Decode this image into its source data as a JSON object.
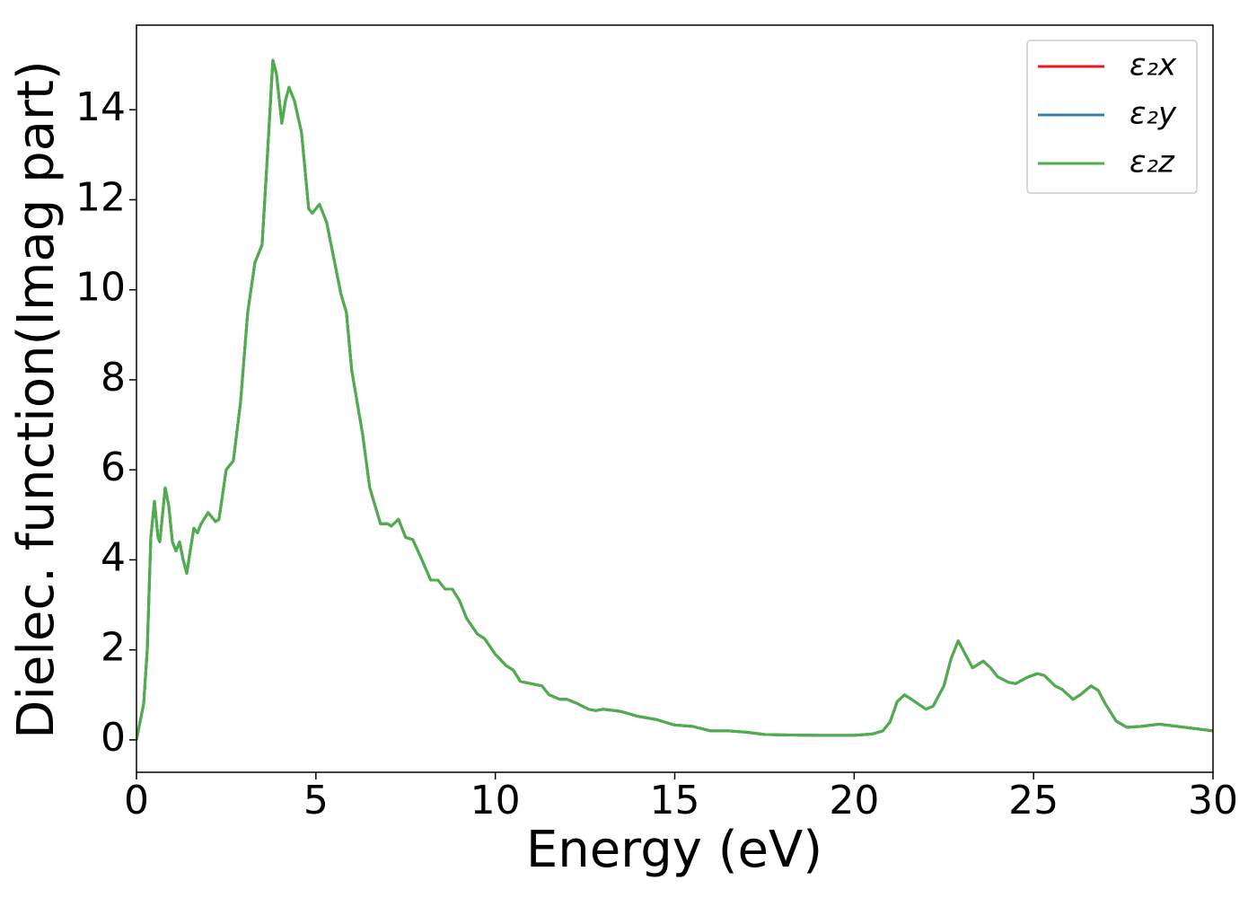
{
  "chart_data": {
    "type": "line",
    "x_label": "Energy (eV)",
    "y_label": "Dielec. function(Imag part)",
    "x": [
      0,
      0.2,
      0.3,
      0.4,
      0.5,
      0.6,
      0.65,
      0.8,
      0.9,
      1.0,
      1.1,
      1.2,
      1.3,
      1.4,
      1.5,
      1.6,
      1.7,
      1.8,
      2.0,
      2.2,
      2.3,
      2.5,
      2.7,
      2.9,
      3.1,
      3.3,
      3.5,
      3.65,
      3.8,
      3.9,
      4.05,
      4.15,
      4.25,
      4.4,
      4.6,
      4.8,
      4.9,
      5.1,
      5.3,
      5.5,
      5.7,
      5.85,
      6.0,
      6.3,
      6.5,
      6.8,
      7.0,
      7.1,
      7.3,
      7.5,
      7.7,
      7.9,
      8.2,
      8.4,
      8.6,
      8.8,
      9.0,
      9.2,
      9.5,
      9.7,
      10.0,
      10.3,
      10.5,
      10.7,
      11.0,
      11.3,
      11.5,
      11.8,
      12.0,
      12.3,
      12.6,
      12.8,
      13.0,
      13.5,
      14.0,
      14.5,
      15.0,
      15.5,
      16.0,
      16.5,
      17.0,
      17.5,
      18.0,
      19.0,
      20.0,
      20.5,
      20.8,
      21.0,
      21.2,
      21.4,
      21.6,
      22.0,
      22.2,
      22.5,
      22.7,
      22.9,
      23.1,
      23.3,
      23.6,
      23.8,
      24.0,
      24.3,
      24.5,
      24.8,
      25.1,
      25.3,
      25.6,
      25.8,
      26.1,
      26.3,
      26.6,
      26.8,
      27.0,
      27.3,
      27.6,
      28.0,
      28.5,
      29.0,
      29.5,
      30.0
    ],
    "series": [
      {
        "name": "ε₂x",
        "color": "#e41a1c",
        "values": [
          0,
          0.8,
          2,
          4.5,
          5.3,
          4.5,
          4.4,
          5.6,
          5.2,
          4.4,
          4.2,
          4.4,
          4.0,
          3.7,
          4.2,
          4.7,
          4.6,
          4.8,
          5.05,
          4.85,
          4.9,
          6.0,
          6.2,
          7.5,
          9.5,
          10.6,
          11.0,
          13,
          15.1,
          14.8,
          13.7,
          14.2,
          14.5,
          14.2,
          13.5,
          11.8,
          11.7,
          11.9,
          11.5,
          10.7,
          9.9,
          9.5,
          8.2,
          6.8,
          5.6,
          4.8,
          4.8,
          4.75,
          4.9,
          4.5,
          4.45,
          4.1,
          3.55,
          3.55,
          3.35,
          3.35,
          3.1,
          2.7,
          2.35,
          2.25,
          1.9,
          1.65,
          1.55,
          1.3,
          1.25,
          1.2,
          1.0,
          0.9,
          0.9,
          0.8,
          0.68,
          0.65,
          0.68,
          0.63,
          0.52,
          0.45,
          0.33,
          0.3,
          0.2,
          0.2,
          0.17,
          0.12,
          0.11,
          0.1,
          0.1,
          0.13,
          0.2,
          0.4,
          0.85,
          1.0,
          0.9,
          0.68,
          0.75,
          1.2,
          1.8,
          2.2,
          1.9,
          1.6,
          1.75,
          1.6,
          1.4,
          1.28,
          1.25,
          1.38,
          1.47,
          1.43,
          1.2,
          1.12,
          0.9,
          1.0,
          1.2,
          1.1,
          0.8,
          0.42,
          0.28,
          0.3,
          0.35,
          0.3,
          0.25,
          0.2
        ]
      },
      {
        "name": "ε₂y",
        "color": "#377eb8",
        "values": [
          0,
          0.8,
          2,
          4.5,
          5.3,
          4.5,
          4.4,
          5.6,
          5.2,
          4.4,
          4.2,
          4.4,
          4.0,
          3.7,
          4.2,
          4.7,
          4.6,
          4.8,
          5.05,
          4.85,
          4.9,
          6.0,
          6.2,
          7.5,
          9.5,
          10.6,
          11.0,
          13,
          15.1,
          14.8,
          13.7,
          14.2,
          14.5,
          14.2,
          13.5,
          11.8,
          11.7,
          11.9,
          11.5,
          10.7,
          9.9,
          9.5,
          8.2,
          6.8,
          5.6,
          4.8,
          4.8,
          4.75,
          4.9,
          4.5,
          4.45,
          4.1,
          3.55,
          3.55,
          3.35,
          3.35,
          3.1,
          2.7,
          2.35,
          2.25,
          1.9,
          1.65,
          1.55,
          1.3,
          1.25,
          1.2,
          1.0,
          0.9,
          0.9,
          0.8,
          0.68,
          0.65,
          0.68,
          0.63,
          0.52,
          0.45,
          0.33,
          0.3,
          0.2,
          0.2,
          0.17,
          0.12,
          0.11,
          0.1,
          0.1,
          0.13,
          0.2,
          0.4,
          0.85,
          1.0,
          0.9,
          0.68,
          0.75,
          1.2,
          1.8,
          2.2,
          1.9,
          1.6,
          1.75,
          1.6,
          1.4,
          1.28,
          1.25,
          1.38,
          1.47,
          1.43,
          1.2,
          1.12,
          0.9,
          1.0,
          1.2,
          1.1,
          0.8,
          0.42,
          0.28,
          0.3,
          0.35,
          0.3,
          0.25,
          0.2
        ]
      },
      {
        "name": "ε₂z",
        "color": "#4daf4a",
        "values": [
          0,
          0.8,
          2,
          4.5,
          5.3,
          4.5,
          4.4,
          5.6,
          5.2,
          4.4,
          4.2,
          4.4,
          4.0,
          3.7,
          4.2,
          4.7,
          4.6,
          4.8,
          5.05,
          4.85,
          4.9,
          6.0,
          6.2,
          7.5,
          9.5,
          10.6,
          11.0,
          13,
          15.1,
          14.8,
          13.7,
          14.2,
          14.5,
          14.2,
          13.5,
          11.8,
          11.7,
          11.9,
          11.5,
          10.7,
          9.9,
          9.5,
          8.2,
          6.8,
          5.6,
          4.8,
          4.8,
          4.75,
          4.9,
          4.5,
          4.45,
          4.1,
          3.55,
          3.55,
          3.35,
          3.35,
          3.1,
          2.7,
          2.35,
          2.25,
          1.9,
          1.65,
          1.55,
          1.3,
          1.25,
          1.2,
          1.0,
          0.9,
          0.9,
          0.8,
          0.68,
          0.65,
          0.68,
          0.63,
          0.52,
          0.45,
          0.33,
          0.3,
          0.2,
          0.2,
          0.17,
          0.12,
          0.11,
          0.1,
          0.1,
          0.13,
          0.2,
          0.4,
          0.85,
          1.0,
          0.9,
          0.68,
          0.75,
          1.2,
          1.8,
          2.2,
          1.9,
          1.6,
          1.75,
          1.6,
          1.4,
          1.28,
          1.25,
          1.38,
          1.47,
          1.43,
          1.2,
          1.12,
          0.9,
          1.0,
          1.2,
          1.1,
          0.8,
          0.42,
          0.28,
          0.3,
          0.35,
          0.3,
          0.25,
          0.2
        ]
      }
    ],
    "xlim": [
      0,
      30
    ],
    "xticks": [
      0,
      5,
      10,
      15,
      20,
      25,
      30
    ],
    "ylim": [
      -0.72,
      15.88
    ],
    "yticks": [
      0,
      2,
      4,
      6,
      8,
      10,
      12,
      14
    ],
    "grid": false,
    "legend": "upper right"
  }
}
